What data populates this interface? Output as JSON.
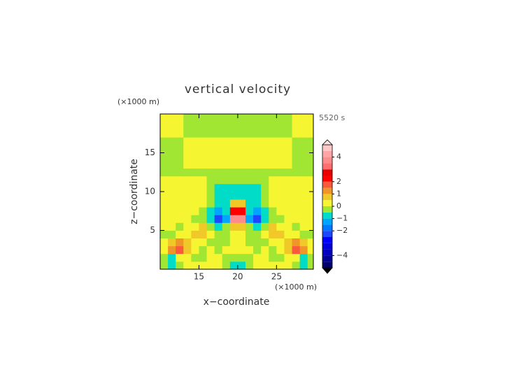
{
  "chart_data": {
    "type": "contour",
    "title": "vertical velocity",
    "x_label": "x−coordinate",
    "y_label": "z−coordinate",
    "x_unit": "(×1000 m)",
    "y_unit": "(×1000 m)",
    "time_label": "5520 s",
    "xlim": [
      10,
      29.75
    ],
    "ylim": [
      0,
      20
    ],
    "xticks": [
      15,
      20,
      25
    ],
    "yticks": [
      5,
      10,
      15
    ],
    "x": [
      10.5,
      11.5,
      12.5,
      13.5,
      14.5,
      15.5,
      16.5,
      17.5,
      18.5,
      19.5,
      20.5,
      21.5,
      22.5,
      23.5,
      24.5,
      25.5,
      26.5,
      27.5,
      28.5,
      29.5
    ],
    "y": [
      0.5,
      1.5,
      2.5,
      3.5,
      4.5,
      5.5,
      6.5,
      7.5,
      8.5,
      9.5,
      10.5,
      11.5,
      12.5,
      13.5,
      14.5,
      15.5,
      16.5,
      17.5,
      18.5,
      19.5
    ],
    "z": [
      [
        -0.3,
        -0.7,
        -0.3,
        0.3,
        0.3,
        0.3,
        0.3,
        0.3,
        -0.3,
        -0.7,
        -0.7,
        -0.3,
        0.3,
        0.3,
        0.3,
        0.3,
        0.3,
        -0.3,
        -0.7,
        -0.3
      ],
      [
        -0.3,
        -0.7,
        0.3,
        0.3,
        -0.3,
        -0.3,
        0.3,
        0.3,
        -0.3,
        -0.3,
        -0.3,
        -0.3,
        0.3,
        0.3,
        -0.3,
        -0.3,
        0.3,
        0.3,
        -0.7,
        -0.3
      ],
      [
        0.3,
        1.2,
        1.7,
        0.7,
        0.3,
        -0.3,
        0.3,
        -0.3,
        0.3,
        0.3,
        0.3,
        0.3,
        -0.3,
        0.3,
        -0.3,
        0.3,
        0.7,
        1.7,
        1.2,
        0.3
      ],
      [
        0.3,
        0.7,
        1.2,
        0.7,
        0.3,
        0.3,
        -0.3,
        -0.3,
        -0.3,
        0.3,
        0.3,
        -0.3,
        -0.3,
        -0.3,
        0.3,
        0.3,
        0.7,
        1.2,
        0.7,
        0.3
      ],
      [
        -0.3,
        -0.3,
        0.3,
        0.3,
        0.7,
        0.7,
        0.3,
        -0.3,
        -0.3,
        0.3,
        0.3,
        -0.3,
        -0.3,
        0.3,
        0.7,
        0.7,
        0.3,
        0.3,
        -0.3,
        -0.3
      ],
      [
        0.3,
        0.3,
        -0.3,
        0.3,
        0.3,
        0.7,
        -0.3,
        -0.7,
        -0.3,
        0.7,
        0.7,
        -0.3,
        -0.7,
        -0.3,
        0.7,
        0.3,
        0.3,
        -0.3,
        0.3,
        0.3
      ],
      [
        0.3,
        0.3,
        0.3,
        0.3,
        -0.3,
        -0.3,
        -0.7,
        -2.2,
        -1.2,
        3.7,
        3.7,
        -1.2,
        -2.2,
        -0.7,
        -0.3,
        -0.3,
        0.3,
        0.3,
        0.3,
        0.3
      ],
      [
        0.3,
        0.3,
        0.3,
        0.3,
        0.3,
        -0.3,
        -0.7,
        -1.2,
        -0.7,
        2.2,
        2.2,
        -0.7,
        -1.2,
        -0.7,
        -0.3,
        0.3,
        0.3,
        0.3,
        0.3,
        0.3
      ],
      [
        0.3,
        0.3,
        0.3,
        0.3,
        0.3,
        0.3,
        -0.3,
        -0.7,
        -0.7,
        0.7,
        0.7,
        -0.7,
        -0.7,
        -0.3,
        0.3,
        0.3,
        0.3,
        0.3,
        0.3,
        0.3
      ],
      [
        0.3,
        0.3,
        0.3,
        0.3,
        0.3,
        0.3,
        -0.3,
        -0.7,
        -0.7,
        -0.7,
        -0.7,
        -0.7,
        -0.7,
        -0.3,
        0.3,
        0.3,
        0.3,
        0.3,
        0.3,
        0.3
      ],
      [
        0.3,
        0.3,
        0.3,
        0.3,
        0.3,
        0.3,
        -0.3,
        -0.7,
        -0.7,
        -0.7,
        -0.7,
        -0.7,
        -0.7,
        -0.3,
        0.3,
        0.3,
        0.3,
        0.3,
        0.3,
        0.3
      ],
      [
        0.3,
        0.3,
        0.3,
        0.3,
        0.3,
        0.3,
        -0.3,
        -0.3,
        -0.3,
        -0.3,
        -0.3,
        -0.3,
        -0.3,
        -0.3,
        0.3,
        0.3,
        0.3,
        0.3,
        0.3,
        0.3
      ],
      [
        -0.3,
        -0.3,
        -0.3,
        -0.3,
        -0.3,
        -0.3,
        -0.3,
        -0.3,
        -0.3,
        -0.3,
        -0.3,
        -0.3,
        -0.3,
        -0.3,
        -0.3,
        -0.3,
        -0.3,
        -0.3,
        -0.3,
        -0.3
      ],
      [
        -0.3,
        -0.3,
        -0.3,
        0.3,
        0.3,
        0.3,
        0.3,
        0.3,
        0.3,
        0.3,
        0.3,
        0.3,
        0.3,
        0.3,
        0.3,
        0.3,
        0.3,
        -0.3,
        -0.3,
        -0.3
      ],
      [
        -0.3,
        -0.3,
        -0.3,
        0.3,
        0.3,
        0.3,
        0.3,
        0.3,
        0.3,
        0.3,
        0.3,
        0.3,
        0.3,
        0.3,
        0.3,
        0.3,
        0.3,
        -0.3,
        -0.3,
        -0.3
      ],
      [
        -0.3,
        -0.3,
        -0.3,
        0.3,
        0.3,
        0.3,
        0.3,
        0.3,
        0.3,
        0.3,
        0.3,
        0.3,
        0.3,
        0.3,
        0.3,
        0.3,
        0.3,
        -0.3,
        -0.3,
        -0.3
      ],
      [
        -0.3,
        -0.3,
        -0.3,
        0.3,
        0.3,
        0.3,
        0.3,
        0.3,
        0.3,
        0.3,
        0.3,
        0.3,
        0.3,
        0.3,
        0.3,
        0.3,
        0.3,
        -0.3,
        -0.3,
        -0.3
      ],
      [
        0.3,
        0.3,
        0.3,
        -0.3,
        -0.3,
        -0.3,
        -0.3,
        -0.3,
        -0.3,
        -0.3,
        -0.3,
        -0.3,
        -0.3,
        -0.3,
        -0.3,
        -0.3,
        -0.3,
        0.3,
        0.3,
        0.3
      ],
      [
        0.3,
        0.3,
        0.3,
        -0.3,
        -0.3,
        -0.3,
        -0.3,
        -0.3,
        -0.3,
        -0.3,
        -0.3,
        -0.3,
        -0.3,
        -0.3,
        -0.3,
        -0.3,
        -0.3,
        0.3,
        0.3,
        0.3
      ],
      [
        0.3,
        0.3,
        0.3,
        -0.3,
        -0.3,
        -0.3,
        -0.3,
        -0.3,
        -0.3,
        -0.3,
        -0.3,
        -0.3,
        -0.3,
        -0.3,
        -0.3,
        -0.3,
        -0.3,
        0.3,
        0.3,
        0.3
      ]
    ],
    "levels": [
      -5,
      -4.5,
      -4,
      -3.5,
      -3,
      -2.5,
      -2,
      -1.5,
      -1,
      -0.5,
      0,
      0.5,
      1,
      1.5,
      2,
      2.5,
      3,
      3.5,
      4,
      4.5,
      5
    ],
    "colors": [
      "#000070",
      "#000096",
      "#0000be",
      "#0000dc",
      "#0000ff",
      "#1e46ff",
      "#0078ff",
      "#00a5ff",
      "#00dcc8",
      "#a0e632",
      "#f5f532",
      "#f0c828",
      "#f09628",
      "#fa5a3c",
      "#ff0000",
      "#e60000",
      "#ff6e6e",
      "#ff8c8c",
      "#ffa5a5",
      "#ffc8c8"
    ],
    "colorbar_ticks": [
      {
        "value": 4,
        "label": "4"
      },
      {
        "value": 2,
        "label": "2"
      },
      {
        "value": 1,
        "label": "1"
      },
      {
        "value": 0,
        "label": "0"
      },
      {
        "value": -1,
        "label": "−1"
      },
      {
        "value": -2,
        "label": "−2"
      },
      {
        "value": -4,
        "label": "−4"
      }
    ]
  }
}
